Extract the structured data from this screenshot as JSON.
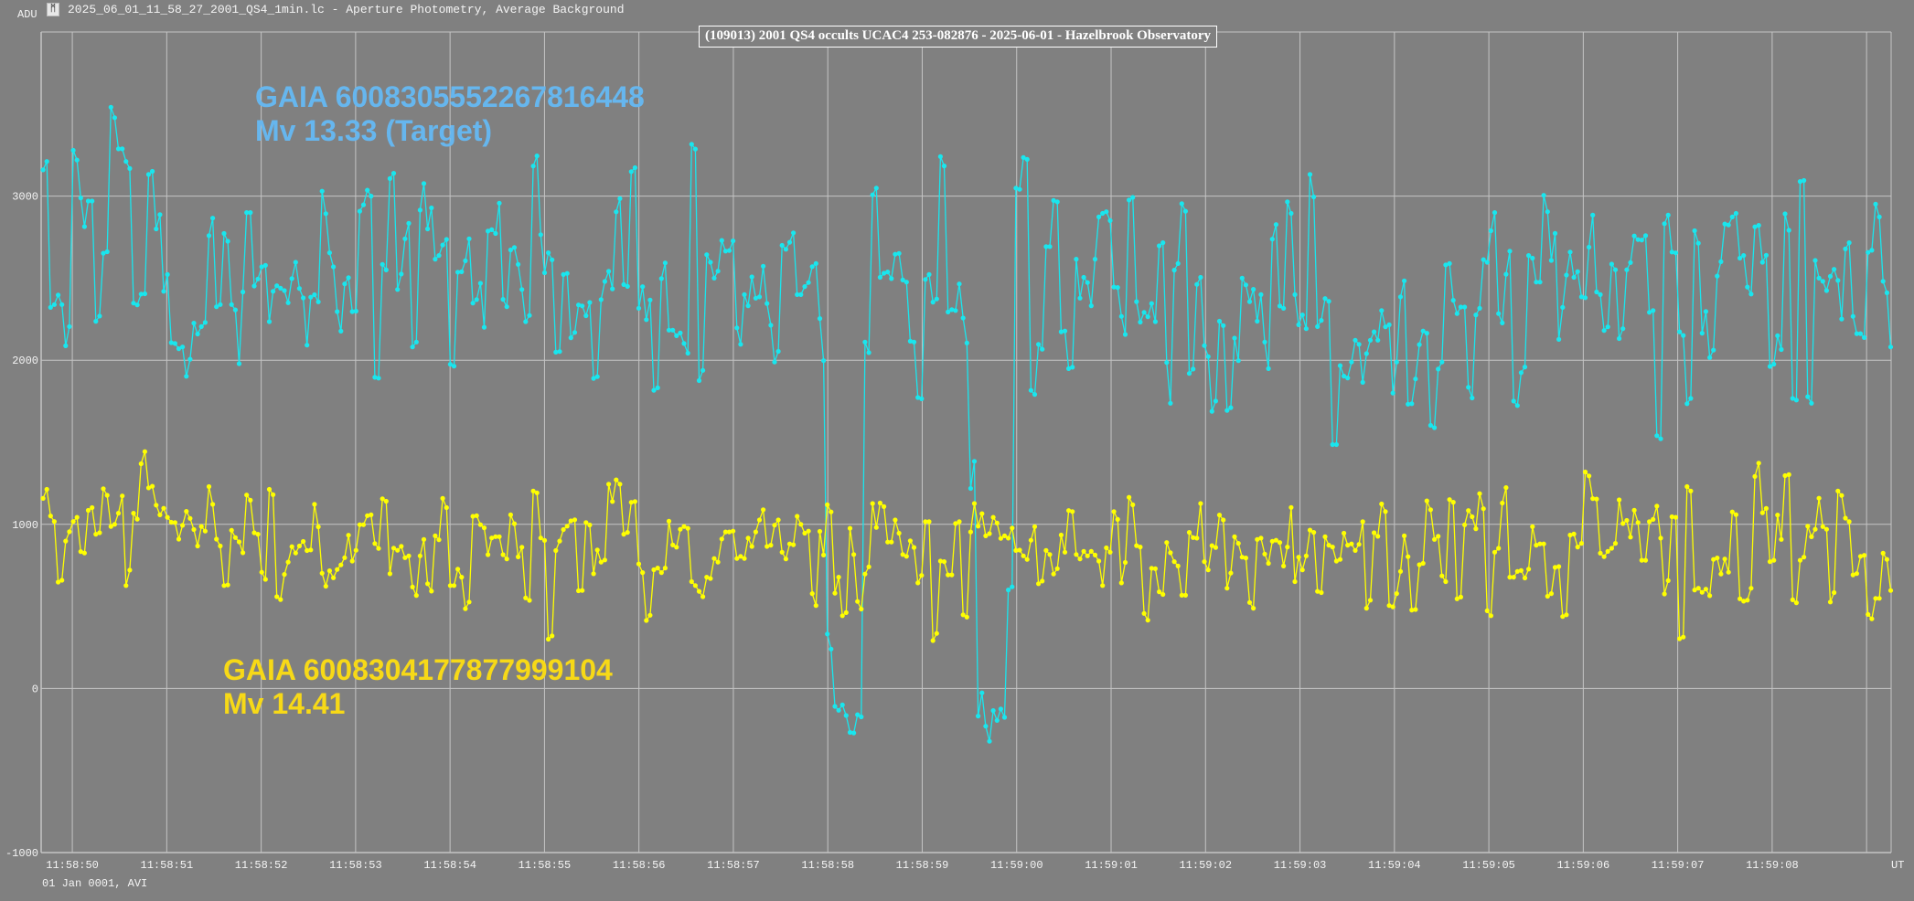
{
  "window": {
    "title": "2025_06_01_11_58_27_2001_QS4_1min.lc - Aperture Photometry, Average Background",
    "icon": "tangra-app-icon"
  },
  "chart_data": {
    "type": "line",
    "title": "(109013) 2001 QS4 occults UCAC4 253-082876 - 2025-06-01 - Hazelbrook Observatory",
    "ylabel": "ADU",
    "xlabel": "UT",
    "date_line": "01 Jan 0001, AVI",
    "ylim": [
      -1000,
      4000
    ],
    "yticks": [
      -1000,
      0,
      1000,
      2000,
      3000
    ],
    "ytick_labels": [
      "-1000",
      "0",
      "1000",
      "2000",
      "3000"
    ],
    "xlim_seconds_after_11_58_00": [
      49.67,
      69.26
    ],
    "xtick_seconds": [
      50,
      51,
      52,
      53,
      54,
      55,
      56,
      57,
      58,
      59,
      60,
      61,
      62,
      63,
      64,
      65,
      66,
      67,
      68,
      69
    ],
    "xtick_labels": [
      "11:58:50",
      "11:58:51",
      "11:58:52",
      "11:58:53",
      "11:58:54",
      "11:58:55",
      "11:58:56",
      "11:58:57",
      "11:58:58",
      "11:58:59",
      "11:59:00",
      "11:59:01",
      "11:59:02",
      "11:59:03",
      "11:59:04",
      "11:59:05",
      "11:59:06",
      "11:59:07",
      "11:59:08",
      ""
    ],
    "grid": true,
    "series_time_range_seconds": [
      49.69,
      69.255
    ],
    "frame_interval_s": 0.04,
    "series": [
      {
        "name": "GAIA 6008305552267816448",
        "label_line1": "GAIA 6008305552267816448",
        "label_line2": "Mv 13.33 (Target)",
        "color": "#19e6ee",
        "label_color": "#66b6ee",
        "values": [
          3160,
          3211,
          2322,
          2339,
          2397,
          2339,
          2088,
          2205,
          3279,
          3220,
          2989,
          2814,
          2970,
          2970,
          2237,
          2269,
          2652,
          2661,
          3542,
          3478,
          3288,
          3288,
          3211,
          3168,
          2348,
          2337,
          2403,
          2405,
          3132,
          3151,
          2800,
          2887,
          2420,
          2522,
          2107,
          2102,
          2070,
          2081,
          1902,
          2006,
          2226,
          2160,
          2205,
          2230,
          2759,
          2866,
          2326,
          2339,
          2772,
          2725,
          2339,
          2307,
          1979,
          2416,
          2900,
          2900,
          2452,
          2495,
          2569,
          2578,
          2235,
          2420,
          2454,
          2439,
          2424,
          2350,
          2497,
          2597,
          2437,
          2380,
          2092,
          2384,
          2399,
          2356,
          3030,
          2893,
          2655,
          2569,
          2296,
          2177,
          2465,
          2503,
          2296,
          2299,
          2908,
          2947,
          3036,
          3000,
          1896,
          1891,
          2584,
          2550,
          3107,
          3139,
          2431,
          2525,
          2740,
          2834,
          2081,
          2111,
          2915,
          3077,
          2800,
          2928,
          2616,
          2638,
          2702,
          2736,
          1975,
          1964,
          2537,
          2539,
          2606,
          2740,
          2348,
          2369,
          2469,
          2201,
          2787,
          2795,
          2772,
          2957,
          2371,
          2326,
          2672,
          2687,
          2584,
          2431,
          2235,
          2273,
          3183,
          3245,
          2765,
          2533,
          2655,
          2612,
          2049,
          2053,
          2522,
          2529,
          2137,
          2169,
          2337,
          2331,
          2271,
          2352,
          1889,
          1900,
          2369,
          2480,
          2542,
          2435,
          2904,
          2985,
          2461,
          2450,
          3149,
          3173,
          2316,
          2448,
          2247,
          2367,
          1817,
          1832,
          2497,
          2593,
          2183,
          2183,
          2149,
          2166,
          2102,
          2043,
          3316,
          3287,
          1876,
          1938,
          2643,
          2597,
          2500,
          2543,
          2730,
          2665,
          2668,
          2727,
          2197,
          2097,
          2400,
          2332,
          2508,
          2378,
          2386,
          2573,
          2346,
          2213,
          1989,
          2054,
          2700,
          2676,
          2719,
          2776,
          2400,
          2400,
          2449,
          2473,
          2570,
          2589,
          2254,
          1997,
          332,
          240,
          -109,
          -133,
          -100,
          -165,
          -268,
          -271,
          -160,
          -173,
          2111,
          2046,
          3008,
          3049,
          2505,
          2530,
          2538,
          2497,
          2646,
          2651,
          2489,
          2476,
          2116,
          2111,
          1773,
          1765,
          2492,
          2522,
          2354,
          2373,
          3241,
          3184,
          2294,
          2308,
          2303,
          2465,
          2257,
          2105,
          1219,
          1384,
          -168,
          -27,
          -230,
          -322,
          -135,
          -195,
          -125,
          -176,
          600,
          619,
          3049,
          3041,
          3235,
          3224,
          1816,
          1792,
          2097,
          2067,
          2692,
          2692,
          2973,
          2965,
          2173,
          2178,
          1949,
          1957,
          2616,
          2378,
          2505,
          2473,
          2332,
          2616,
          2873,
          2895,
          2905,
          2851,
          2446,
          2443,
          2267,
          2157,
          2976,
          2992,
          2357,
          2232,
          2292,
          2265,
          2346,
          2235,
          2697,
          2716,
          1986,
          1738,
          2549,
          2589,
          2954,
          2908,
          1919,
          1946,
          2462,
          2505,
          2089,
          2022,
          1689,
          1751,
          2238,
          2211,
          1694,
          1711,
          2135,
          1997,
          2500,
          2459,
          2357,
          2432,
          2238,
          2400,
          2111,
          1949,
          2738,
          2827,
          2330,
          2316,
          2965,
          2895,
          2400,
          2216,
          2276,
          2192,
          3132,
          2995,
          2205,
          2243,
          2376,
          2359,
          1486,
          1486,
          1967,
          1903,
          1892,
          1989,
          2122,
          2097,
          1865,
          2040,
          2122,
          2173,
          2122,
          2303,
          2203,
          2216,
          1800,
          1989,
          2386,
          2484,
          1732,
          1735,
          1886,
          2095,
          2178,
          2165,
          1603,
          1589,
          1946,
          1989,
          2581,
          2589,
          2365,
          2284,
          2324,
          2324,
          1835,
          1770,
          2276,
          2316,
          2613,
          2597,
          2789,
          2900,
          2284,
          2227,
          2524,
          2665,
          1751,
          1724,
          1924,
          1959,
          2638,
          2622,
          2476,
          2476,
          3005,
          2905,
          2608,
          2773,
          2127,
          2322,
          2519,
          2659,
          2505,
          2540,
          2386,
          2381,
          2689,
          2884,
          2416,
          2400,
          2181,
          2203,
          2586,
          2551,
          2132,
          2192,
          2551,
          2595,
          2757,
          2735,
          2732,
          2759,
          2292,
          2303,
          1540,
          1521,
          2832,
          2884,
          2659,
          2654,
          2173,
          2151,
          1735,
          1767,
          2789,
          2713,
          2165,
          2297,
          2016,
          2062,
          2513,
          2600,
          2830,
          2824,
          2873,
          2895,
          2622,
          2638,
          2446,
          2403,
          2813,
          2822,
          2597,
          2640,
          1962,
          1976,
          2149,
          2065,
          2892,
          2792,
          1767,
          1757,
          3089,
          3095,
          1778,
          1738,
          2608,
          2500,
          2481,
          2424,
          2511,
          2554,
          2486,
          2251,
          2678,
          2716,
          2267,
          2162,
          2162,
          2138,
          2657,
          2670,
          2951,
          2873,
          2481,
          2411,
          2081
        ]
      },
      {
        "name": "GAIA 6008304177877999104",
        "label_line1": "GAIA 6008304177877999104",
        "label_line2": "Mv 14.41",
        "color": "#ffff00",
        "label_color": "#f7d917",
        "values": [
          1158,
          1213,
          1051,
          1017,
          648,
          659,
          898,
          955,
          1017,
          1043,
          834,
          825,
          1085,
          1102,
          940,
          949,
          1217,
          1177,
          987,
          1000,
          1068,
          1173,
          627,
          721,
          1068,
          1032,
          1369,
          1443,
          1222,
          1232,
          1117,
          1058,
          1098,
          1043,
          1013,
          1011,
          910,
          994,
          1079,
          1036,
          968,
          868,
          987,
          959,
          1230,
          1122,
          910,
          868,
          627,
          631,
          964,
          919,
          893,
          827,
          1179,
          1147,
          949,
          940,
          708,
          665,
          1213,
          1181,
          559,
          542,
          695,
          770,
          864,
          825,
          868,
          896,
          840,
          844,
          1122,
          985,
          702,
          623,
          717,
          674,
          725,
          753,
          797,
          934,
          776,
          842,
          998,
          998,
          1053,
          1058,
          883,
          853,
          1156,
          1141,
          699,
          855,
          842,
          866,
          797,
          808,
          618,
          567,
          808,
          908,
          638,
          593,
          930,
          906,
          1158,
          1102,
          627,
          627,
          727,
          678,
          486,
          527,
          1049,
          1053,
          998,
          979,
          815,
          917,
          925,
          925,
          815,
          789,
          1058,
          1004,
          802,
          861,
          552,
          537,
          1203,
          1192,
          917,
          902,
          300,
          320,
          840,
          898,
          968,
          989,
          1021,
          1028,
          595,
          597,
          1011,
          996,
          699,
          844,
          770,
          783,
          1245,
          1139,
          1271,
          1245,
          940,
          951,
          1134,
          1139,
          759,
          706,
          414,
          446,
          723,
          734,
          706,
          734,
          1019,
          874,
          861,
          970,
          987,
          976,
          651,
          627,
          592,
          559,
          678,
          670,
          792,
          770,
          911,
          954,
          954,
          959,
          792,
          805,
          792,
          916,
          865,
          954,
          1027,
          1089,
          865,
          873,
          995,
          1027,
          830,
          789,
          881,
          876,
          1049,
          1000,
          946,
          959,
          578,
          505,
          957,
          813,
          1119,
          1076,
          581,
          678,
          443,
          462,
          976,
          816,
          530,
          484,
          697,
          741,
          1127,
          981,
          1130,
          1108,
          892,
          892,
          1027,
          946,
          816,
          805,
          900,
          859,
          643,
          689,
          1016,
          1016,
          292,
          335,
          776,
          773,
          692,
          692,
          1005,
          1016,
          449,
          435,
          954,
          1127,
          989,
          1065,
          930,
          943,
          1043,
          1008,
          914,
          930,
          916,
          978,
          841,
          843,
          808,
          786,
          903,
          986,
          638,
          654,
          841,
          816,
          697,
          730,
          935,
          830,
          1084,
          1078,
          816,
          789,
          835,
          808,
          835,
          813,
          776,
          627,
          857,
          830,
          1078,
          1030,
          643,
          768,
          1165,
          1119,
          870,
          862,
          457,
          416,
          732,
          730,
          589,
          573,
          889,
          827,
          773,
          746,
          568,
          568,
          951,
          919,
          916,
          1127,
          773,
          722,
          870,
          859,
          1057,
          1027,
          611,
          703,
          924,
          884,
          800,
          795,
          524,
          489,
          908,
          916,
          819,
          762,
          897,
          903,
          889,
          746,
          862,
          1103,
          651,
          800,
          722,
          808,
          965,
          951,
          592,
          584,
          924,
          873,
          862,
          776,
          786,
          946,
          873,
          881,
          841,
          878,
          1016,
          489,
          538,
          949,
          927,
          1124,
          1078,
          505,
          497,
          578,
          713,
          930,
          803,
          478,
          481,
          754,
          762,
          1143,
          1089,
          908,
          927,
          686,
          651,
          1151,
          1135,
          546,
          557,
          997,
          1084,
          1046,
          973,
          1187,
          1095,
          473,
          443,
          830,
          854,
          1130,
          1224,
          678,
          678,
          713,
          719,
          673,
          727,
          986,
          873,
          881,
          881,
          562,
          578,
          738,
          743,
          438,
          449,
          935,
          941,
          862,
          884,
          1319,
          1295,
          1157,
          1154,
          824,
          803,
          835,
          854,
          884,
          1149,
          1005,
          1024,
          922,
          1086,
          1011,
          781,
          781,
          1016,
          1030,
          1111,
          916,
          576,
          657,
          1046,
          1043,
          303,
          313,
          1230,
          1203,
          600,
          611,
          586,
          605,
          565,
          786,
          795,
          697,
          789,
          708,
          1076,
          1059,
          546,
          532,
          538,
          611,
          1292,
          1373,
          1070,
          1097,
          773,
          781,
          1057,
          908,
          1297,
          1303,
          540,
          522,
          781,
          800,
          989,
          924,
          970,
          1159,
          986,
          970,
          527,
          584,
          1203,
          1176,
          1038,
          1016,
          692,
          700,
          805,
          811,
          451,
          424,
          549,
          549,
          824,
          786,
          597
        ]
      }
    ]
  }
}
